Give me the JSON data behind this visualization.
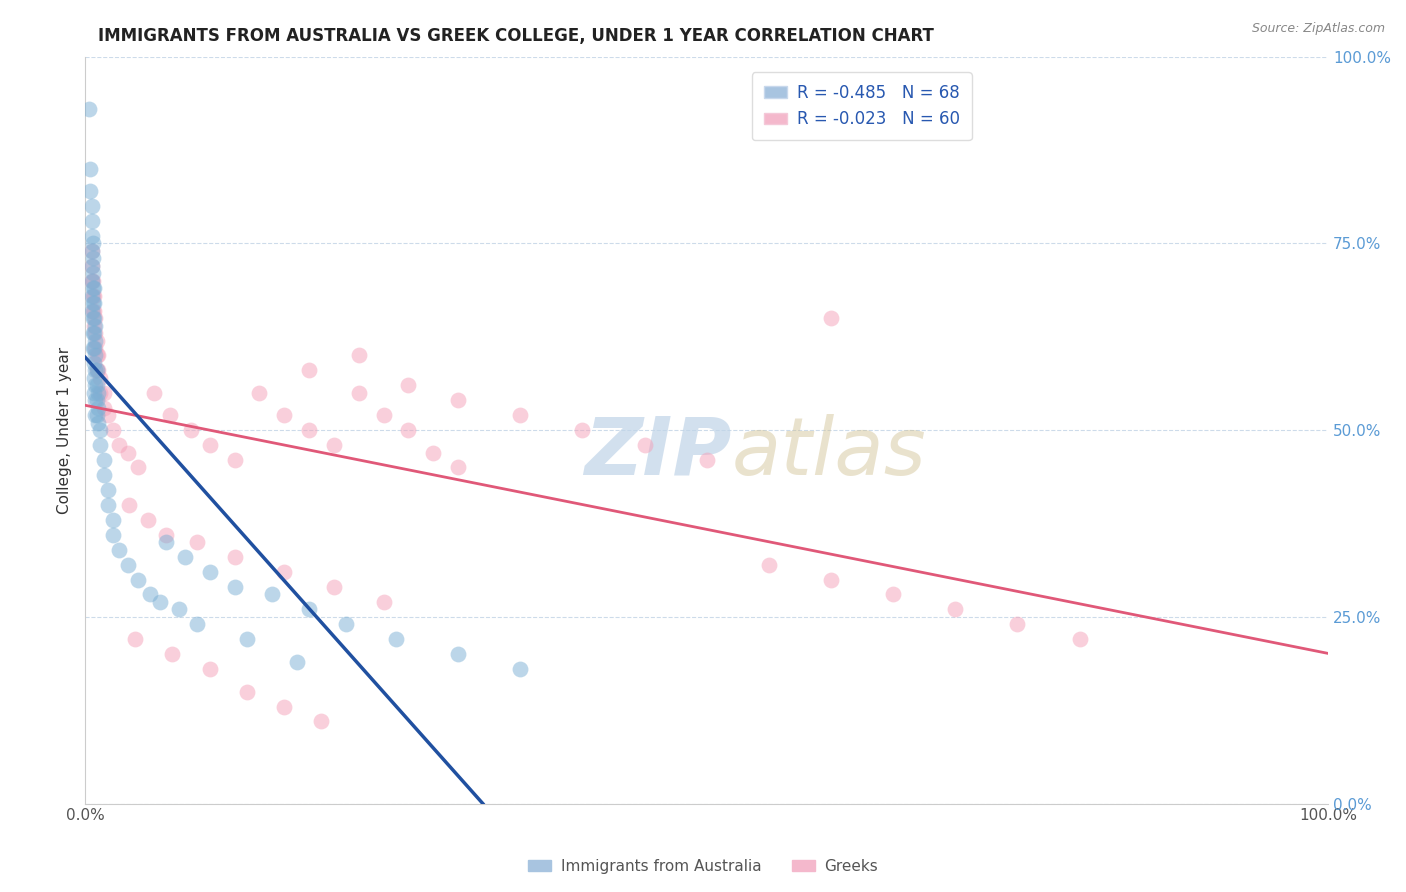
{
  "title": "IMMIGRANTS FROM AUSTRALIA VS GREEK COLLEGE, UNDER 1 YEAR CORRELATION CHART",
  "source": "Source: ZipAtlas.com",
  "ylabel": "College, Under 1 year",
  "xlim": [
    0.0,
    1.0
  ],
  "ylim": [
    0.0,
    1.0
  ],
  "ytick_positions": [
    0.0,
    0.25,
    0.5,
    0.75,
    1.0
  ],
  "blue_color": "#7bafd4",
  "pink_color": "#f4a0b8",
  "trendline_blue_color": "#2050a0",
  "trendline_pink_color": "#e05878",
  "background_color": "#ffffff",
  "grid_color": "#c8d8e8",
  "watermark_color": "#c0d4e8",
  "blue_points": [
    [
      0.003,
      0.93
    ],
    [
      0.004,
      0.85
    ],
    [
      0.004,
      0.82
    ],
    [
      0.005,
      0.8
    ],
    [
      0.005,
      0.78
    ],
    [
      0.005,
      0.76
    ],
    [
      0.005,
      0.74
    ],
    [
      0.005,
      0.72
    ],
    [
      0.005,
      0.7
    ],
    [
      0.005,
      0.68
    ],
    [
      0.005,
      0.66
    ],
    [
      0.006,
      0.75
    ],
    [
      0.006,
      0.73
    ],
    [
      0.006,
      0.71
    ],
    [
      0.006,
      0.69
    ],
    [
      0.006,
      0.67
    ],
    [
      0.006,
      0.65
    ],
    [
      0.006,
      0.63
    ],
    [
      0.006,
      0.61
    ],
    [
      0.007,
      0.69
    ],
    [
      0.007,
      0.67
    ],
    [
      0.007,
      0.65
    ],
    [
      0.007,
      0.63
    ],
    [
      0.007,
      0.61
    ],
    [
      0.007,
      0.59
    ],
    [
      0.007,
      0.57
    ],
    [
      0.007,
      0.55
    ],
    [
      0.008,
      0.64
    ],
    [
      0.008,
      0.62
    ],
    [
      0.008,
      0.6
    ],
    [
      0.008,
      0.58
    ],
    [
      0.008,
      0.56
    ],
    [
      0.008,
      0.54
    ],
    [
      0.008,
      0.52
    ],
    [
      0.009,
      0.58
    ],
    [
      0.009,
      0.56
    ],
    [
      0.009,
      0.54
    ],
    [
      0.009,
      0.52
    ],
    [
      0.01,
      0.55
    ],
    [
      0.01,
      0.53
    ],
    [
      0.01,
      0.51
    ],
    [
      0.012,
      0.5
    ],
    [
      0.012,
      0.48
    ],
    [
      0.015,
      0.46
    ],
    [
      0.015,
      0.44
    ],
    [
      0.018,
      0.42
    ],
    [
      0.018,
      0.4
    ],
    [
      0.022,
      0.38
    ],
    [
      0.022,
      0.36
    ],
    [
      0.027,
      0.34
    ],
    [
      0.034,
      0.32
    ],
    [
      0.042,
      0.3
    ],
    [
      0.052,
      0.28
    ],
    [
      0.065,
      0.35
    ],
    [
      0.08,
      0.33
    ],
    [
      0.1,
      0.31
    ],
    [
      0.12,
      0.29
    ],
    [
      0.15,
      0.28
    ],
    [
      0.18,
      0.26
    ],
    [
      0.21,
      0.24
    ],
    [
      0.25,
      0.22
    ],
    [
      0.3,
      0.2
    ],
    [
      0.35,
      0.18
    ],
    [
      0.06,
      0.27
    ],
    [
      0.075,
      0.26
    ],
    [
      0.09,
      0.24
    ],
    [
      0.13,
      0.22
    ],
    [
      0.17,
      0.19
    ]
  ],
  "pink_points": [
    [
      0.005,
      0.74
    ],
    [
      0.005,
      0.72
    ],
    [
      0.005,
      0.7
    ],
    [
      0.006,
      0.7
    ],
    [
      0.006,
      0.68
    ],
    [
      0.006,
      0.66
    ],
    [
      0.007,
      0.68
    ],
    [
      0.007,
      0.66
    ],
    [
      0.007,
      0.64
    ],
    [
      0.008,
      0.65
    ],
    [
      0.008,
      0.63
    ],
    [
      0.008,
      0.61
    ],
    [
      0.009,
      0.62
    ],
    [
      0.009,
      0.6
    ],
    [
      0.009,
      0.58
    ],
    [
      0.01,
      0.6
    ],
    [
      0.01,
      0.58
    ],
    [
      0.012,
      0.57
    ],
    [
      0.012,
      0.55
    ],
    [
      0.015,
      0.55
    ],
    [
      0.015,
      0.53
    ],
    [
      0.018,
      0.52
    ],
    [
      0.022,
      0.5
    ],
    [
      0.027,
      0.48
    ],
    [
      0.034,
      0.47
    ],
    [
      0.042,
      0.45
    ],
    [
      0.055,
      0.55
    ],
    [
      0.068,
      0.52
    ],
    [
      0.085,
      0.5
    ],
    [
      0.1,
      0.48
    ],
    [
      0.12,
      0.46
    ],
    [
      0.14,
      0.55
    ],
    [
      0.16,
      0.52
    ],
    [
      0.18,
      0.5
    ],
    [
      0.2,
      0.48
    ],
    [
      0.22,
      0.55
    ],
    [
      0.24,
      0.52
    ],
    [
      0.26,
      0.5
    ],
    [
      0.28,
      0.47
    ],
    [
      0.3,
      0.45
    ],
    [
      0.035,
      0.4
    ],
    [
      0.05,
      0.38
    ],
    [
      0.065,
      0.36
    ],
    [
      0.09,
      0.35
    ],
    [
      0.12,
      0.33
    ],
    [
      0.16,
      0.31
    ],
    [
      0.2,
      0.29
    ],
    [
      0.24,
      0.27
    ],
    [
      0.18,
      0.58
    ],
    [
      0.22,
      0.6
    ],
    [
      0.26,
      0.56
    ],
    [
      0.3,
      0.54
    ],
    [
      0.35,
      0.52
    ],
    [
      0.4,
      0.5
    ],
    [
      0.45,
      0.48
    ],
    [
      0.5,
      0.46
    ],
    [
      0.6,
      0.65
    ],
    [
      0.04,
      0.22
    ],
    [
      0.07,
      0.2
    ],
    [
      0.1,
      0.18
    ],
    [
      0.13,
      0.15
    ],
    [
      0.16,
      0.13
    ],
    [
      0.19,
      0.11
    ],
    [
      0.55,
      0.32
    ],
    [
      0.6,
      0.3
    ],
    [
      0.65,
      0.28
    ],
    [
      0.7,
      0.26
    ],
    [
      0.75,
      0.24
    ],
    [
      0.8,
      0.22
    ]
  ]
}
